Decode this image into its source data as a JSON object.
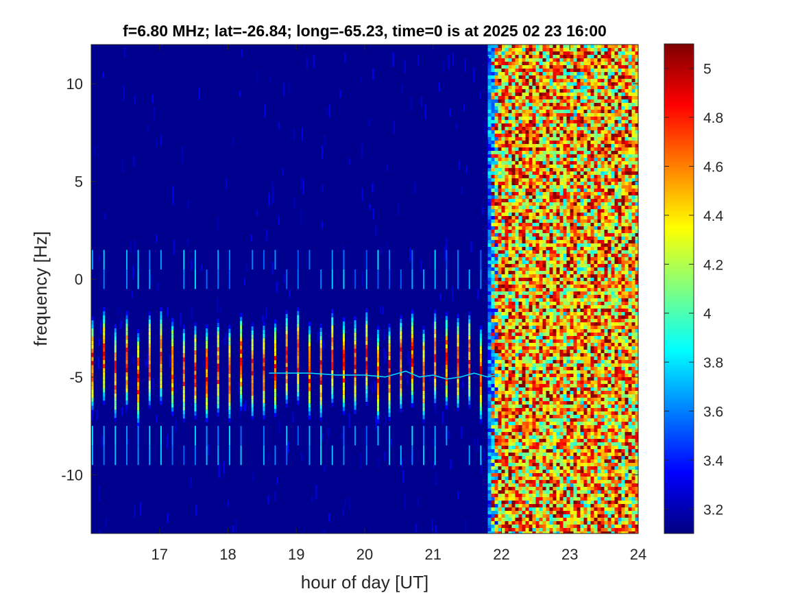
{
  "chart_data": {
    "type": "heatmap",
    "title": "f=6.80 MHz;  lat=-26.84; long=-65.23, time=0 is at 2025 02 23 16:00",
    "xlabel": "hour of day [UT]",
    "ylabel": "frequency [Hz]",
    "xlim": [
      16.0,
      24.0
    ],
    "ylim": [
      -13.0,
      12.0
    ],
    "xticks": [
      17,
      18,
      19,
      20,
      21,
      22,
      23,
      24
    ],
    "xtick_labels": [
      "17",
      "18",
      "19",
      "20",
      "21",
      "22",
      "23",
      "24"
    ],
    "yticks": [
      -10,
      -5,
      0,
      5,
      10
    ],
    "ytick_labels": [
      "-10",
      "-5",
      "0",
      "5",
      "10"
    ],
    "colormap": "jet",
    "clim": [
      3.1,
      5.1
    ],
    "colorbar_ticks": [
      3.2,
      3.4,
      3.6,
      3.8,
      4,
      4.2,
      4.4,
      4.6,
      4.8,
      5
    ],
    "colorbar_tick_labels": [
      "3.2",
      "3.4",
      "3.6",
      "3.8",
      "4",
      "4.2",
      "4.4",
      "4.6",
      "4.8",
      "5"
    ],
    "background_level": 3.1,
    "noise_region": {
      "x_start": 21.9,
      "x_end": 24.0,
      "mean_level": 4.5
    },
    "pulse_columns": {
      "x_start": 16.02,
      "x_end": 21.85,
      "period_hours": 0.167,
      "core_frequency_range": [
        -7.0,
        -2.0
      ],
      "peak_level": 4.9,
      "harmonic_frequencies": [
        -9.0,
        -8.0,
        0.0,
        1.0
      ]
    },
    "doppler_trace": {
      "x": [
        18.6,
        19.2,
        19.6,
        20.0,
        20.3,
        20.6,
        20.8,
        21.0,
        21.2,
        21.4,
        21.6,
        21.8,
        21.9
      ],
      "y": [
        -4.8,
        -4.8,
        -4.9,
        -4.9,
        -5.0,
        -4.7,
        -5.0,
        -4.9,
        -5.1,
        -5.0,
        -4.8,
        -5.0,
        -4.9
      ]
    },
    "grid": false
  }
}
